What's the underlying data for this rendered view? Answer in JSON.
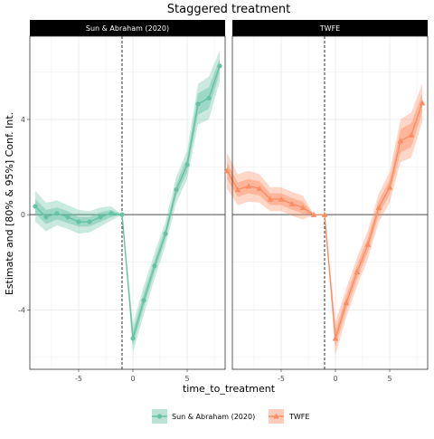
{
  "chart_data": {
    "type": "line",
    "title": "Staggered treatment",
    "xlabel": "time_to_treatment",
    "ylabel": "Estimate and [80% & 95%] Conf. Int.",
    "xlim": [
      -9.5,
      8.5
    ],
    "ylim": [
      -6.5,
      7.5
    ],
    "x_ticks": [
      -5,
      0,
      5
    ],
    "y_ticks": [
      -4,
      0,
      4
    ],
    "reference_line_y": 0,
    "reference_line_x": -1,
    "grid": true,
    "legend_position": "bottom",
    "panels": [
      {
        "strip": "Sun & Abraham (2020)",
        "series_name": "Sun & Abraham (2020)",
        "color": "#66c2a5",
        "marker": "circle",
        "x": [
          -9,
          -8,
          -7,
          -6,
          -5,
          -4,
          -3,
          -2,
          -1,
          0,
          1,
          2,
          3,
          4,
          5,
          6,
          7,
          8
        ],
        "y": [
          0.35,
          -0.1,
          0.05,
          -0.1,
          -0.3,
          -0.3,
          -0.1,
          0.05,
          0.0,
          -5.2,
          -3.6,
          -2.15,
          -0.8,
          1.05,
          2.1,
          4.65,
          4.9,
          6.25
        ],
        "ci80": [
          [
            0.05,
            0.65
          ],
          [
            -0.4,
            0.2
          ],
          [
            -0.2,
            0.3
          ],
          [
            -0.35,
            0.15
          ],
          [
            -0.5,
            -0.1
          ],
          [
            -0.5,
            -0.1
          ],
          [
            -0.3,
            0.1
          ],
          [
            -0.1,
            0.2
          ],
          [
            0.0,
            0.0
          ],
          [
            -5.5,
            -4.9
          ],
          [
            -3.9,
            -3.3
          ],
          [
            -2.4,
            -1.9
          ],
          [
            -1.05,
            -0.55
          ],
          [
            0.8,
            1.3
          ],
          [
            1.8,
            2.4
          ],
          [
            4.2,
            5.1
          ],
          [
            4.45,
            5.35
          ],
          [
            5.95,
            6.55
          ]
        ],
        "ci95": [
          [
            -0.3,
            1.0
          ],
          [
            -0.7,
            0.5
          ],
          [
            -0.45,
            0.6
          ],
          [
            -0.6,
            0.4
          ],
          [
            -0.8,
            0.2
          ],
          [
            -0.75,
            0.15
          ],
          [
            -0.5,
            0.3
          ],
          [
            -0.25,
            0.35
          ],
          [
            0.0,
            0.0
          ],
          [
            -5.8,
            -4.6
          ],
          [
            -4.2,
            -3.0
          ],
          [
            -2.7,
            -1.6
          ],
          [
            -1.3,
            -0.3
          ],
          [
            0.5,
            1.6
          ],
          [
            1.5,
            2.7
          ],
          [
            3.8,
            5.5
          ],
          [
            4.0,
            5.8
          ],
          [
            5.6,
            6.9
          ]
        ]
      },
      {
        "strip": "TWFE",
        "series_name": "TWFE",
        "color": "#fc8d62",
        "marker": "triangle",
        "x": [
          -10,
          -9,
          -8,
          -7,
          -6,
          -5,
          -4,
          -3,
          -2,
          -1,
          0,
          1,
          2,
          3,
          4,
          5,
          6,
          7,
          8
        ],
        "y": [
          1.85,
          1.05,
          1.2,
          1.1,
          0.65,
          0.65,
          0.45,
          0.3,
          0.0,
          0.0,
          -5.2,
          -3.7,
          -2.4,
          -1.25,
          0.3,
          1.15,
          3.1,
          3.35,
          4.7
        ],
        "ci80": [
          [
            1.5,
            2.2
          ],
          [
            0.75,
            1.35
          ],
          [
            0.9,
            1.5
          ],
          [
            0.8,
            1.4
          ],
          [
            0.4,
            0.9
          ],
          [
            0.4,
            0.9
          ],
          [
            0.2,
            0.7
          ],
          [
            0.05,
            0.55
          ],
          [
            0.0,
            0.0
          ],
          [
            0.0,
            0.0
          ],
          [
            -5.55,
            -4.85
          ],
          [
            -4.0,
            -3.4
          ],
          [
            -2.7,
            -2.1
          ],
          [
            -1.55,
            -0.95
          ],
          [
            0.0,
            0.6
          ],
          [
            0.85,
            1.45
          ],
          [
            2.6,
            3.6
          ],
          [
            2.85,
            3.85
          ],
          [
            4.3,
            5.1
          ]
        ],
        "ci95": [
          [
            1.1,
            2.6
          ],
          [
            0.4,
            1.7
          ],
          [
            0.55,
            1.85
          ],
          [
            0.5,
            1.7
          ],
          [
            0.15,
            1.15
          ],
          [
            0.15,
            1.15
          ],
          [
            -0.05,
            0.95
          ],
          [
            -0.2,
            0.8
          ],
          [
            0.0,
            0.0
          ],
          [
            0.0,
            0.0
          ],
          [
            -5.9,
            -4.5
          ],
          [
            -4.3,
            -3.1
          ],
          [
            -3.0,
            -1.8
          ],
          [
            -1.85,
            -0.65
          ],
          [
            -0.3,
            0.9
          ],
          [
            0.5,
            1.8
          ],
          [
            2.2,
            4.0
          ],
          [
            2.4,
            4.3
          ],
          [
            3.9,
            5.5
          ]
        ]
      }
    ]
  }
}
